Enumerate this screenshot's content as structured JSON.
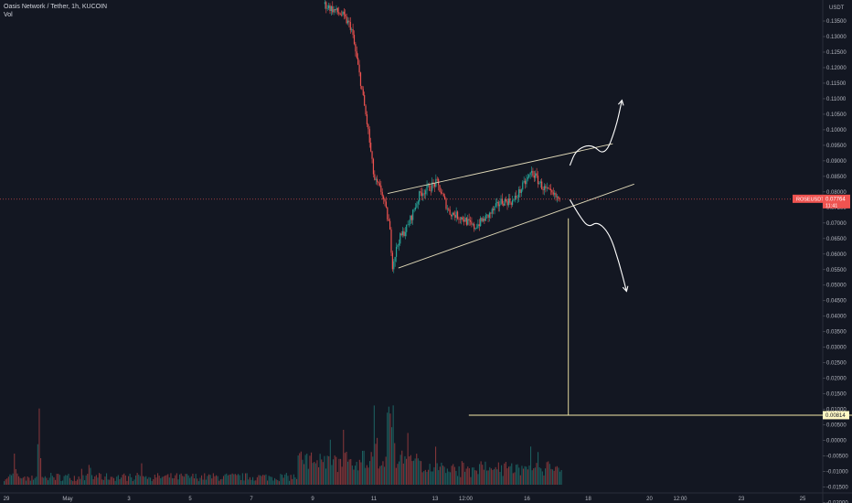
{
  "header": {
    "title": "Oasis Network / Tether, 1h, KUCOIN",
    "sub": "Vol"
  },
  "currency": "USDT",
  "colors": {
    "background": "#131722",
    "up": "#26a69a",
    "down": "#ef5350",
    "text": "#b2b5be",
    "drawing": "#ffffff",
    "channel": "#e0d9b8",
    "target_line": "#f5e9a8",
    "price_badge": "#ef5350",
    "target_badge": "#fff8c4"
  },
  "price_badge": {
    "symbol": "ROSEUSDT",
    "price": "0.07764",
    "time": "11:41"
  },
  "target_badge": "0.00814",
  "chart_data": {
    "type": "candlestick",
    "title": "Oasis Network / Tether, 1h, KUCOIN",
    "xlabel": "",
    "ylabel": "USDT",
    "ylim": [
      -0.0205,
      0.1405
    ],
    "y_ticks": [
      "0.13500",
      "0.13000",
      "0.12500",
      "0.12000",
      "0.11500",
      "0.11000",
      "0.10500",
      "0.10000",
      "0.09500",
      "0.09000",
      "0.08500",
      "0.08000",
      "0.07500",
      "0.07000",
      "0.06500",
      "0.06000",
      "0.05500",
      "0.05000",
      "0.04500",
      "0.04000",
      "0.03500",
      "0.03000",
      "0.02500",
      "0.02000",
      "0.01500",
      "0.01000",
      "0.00500",
      "0.00000",
      "-0.00500",
      "-0.01000",
      "-0.01500",
      "-0.02000"
    ],
    "x_ticks": [
      {
        "label": "29",
        "day": 0
      },
      {
        "label": "May",
        "day": 2
      },
      {
        "label": "3",
        "day": 4
      },
      {
        "label": "5",
        "day": 6
      },
      {
        "label": "7",
        "day": 8
      },
      {
        "label": "9",
        "day": 10
      },
      {
        "label": "11",
        "day": 12
      },
      {
        "label": "13",
        "day": 14
      },
      {
        "label": "12:00",
        "day": 15
      },
      {
        "label": "16",
        "day": 17
      },
      {
        "label": "18",
        "day": 19
      },
      {
        "label": "20",
        "day": 21
      },
      {
        "label": "12:00",
        "day": 22
      },
      {
        "label": "23",
        "day": 24
      },
      {
        "label": "25",
        "day": 26
      }
    ],
    "price_path": [
      [
        10.4,
        0.1405
      ],
      [
        11.0,
        0.137
      ],
      [
        11.3,
        0.133
      ],
      [
        11.6,
        0.116
      ],
      [
        11.85,
        0.1
      ],
      [
        12.05,
        0.084
      ],
      [
        12.3,
        0.08
      ],
      [
        12.55,
        0.069
      ],
      [
        12.65,
        0.0565
      ],
      [
        12.85,
        0.0645
      ],
      [
        13.15,
        0.069
      ],
      [
        13.55,
        0.0795
      ],
      [
        14.1,
        0.083
      ],
      [
        14.5,
        0.0735
      ],
      [
        14.95,
        0.0715
      ],
      [
        15.3,
        0.0685
      ],
      [
        15.8,
        0.0725
      ],
      [
        16.2,
        0.077
      ],
      [
        16.6,
        0.077
      ],
      [
        16.95,
        0.0825
      ],
      [
        17.2,
        0.0865
      ],
      [
        17.55,
        0.0815
      ],
      [
        17.85,
        0.079
      ],
      [
        18.1,
        0.0776
      ]
    ],
    "last_price": 0.07764,
    "volume_ylim": [
      0,
      100
    ],
    "volume_peaks": [
      {
        "day": 0.25,
        "vol": 28
      },
      {
        "day": 1.05,
        "vol": 70
      },
      {
        "day": 2.7,
        "vol": 22
      },
      {
        "day": 4.4,
        "vol": 18
      },
      {
        "day": 10.55,
        "vol": 44
      },
      {
        "day": 11.0,
        "vol": 52
      },
      {
        "day": 12.0,
        "vol": 72
      },
      {
        "day": 12.45,
        "vol": 90
      },
      {
        "day": 12.6,
        "vol": 82
      },
      {
        "day": 13.1,
        "vol": 48
      },
      {
        "day": 14.0,
        "vol": 32
      },
      {
        "day": 15.5,
        "vol": 26
      },
      {
        "day": 17.1,
        "vol": 34
      },
      {
        "day": 17.35,
        "vol": 30
      }
    ],
    "volume_end_day": 18.15,
    "annotations": {
      "channel_upper": [
        [
          12.45,
          0.0795
        ],
        [
          19.8,
          0.0955
        ]
      ],
      "channel_lower": [
        [
          12.8,
          0.0555
        ],
        [
          20.5,
          0.0825
        ]
      ],
      "target_value": 0.00814,
      "target_line_days": [
        15.1,
        27.8
      ],
      "projection_vertical": {
        "day": 18.35,
        "from": 0.0715,
        "to": 0.00814
      },
      "arrow_up": [
        [
          18.4,
          0.0885
        ],
        [
          18.6,
          0.0935
        ],
        [
          19.1,
          0.0955
        ],
        [
          19.55,
          0.0915
        ],
        [
          19.9,
          0.1005
        ],
        [
          20.1,
          0.1095
        ]
      ],
      "arrow_down": [
        [
          18.4,
          0.0775
        ],
        [
          18.7,
          0.0725
        ],
        [
          19.0,
          0.0685
        ],
        [
          19.3,
          0.0705
        ],
        [
          19.7,
          0.0665
        ],
        [
          20.0,
          0.0575
        ],
        [
          20.25,
          0.048
        ]
      ]
    }
  }
}
